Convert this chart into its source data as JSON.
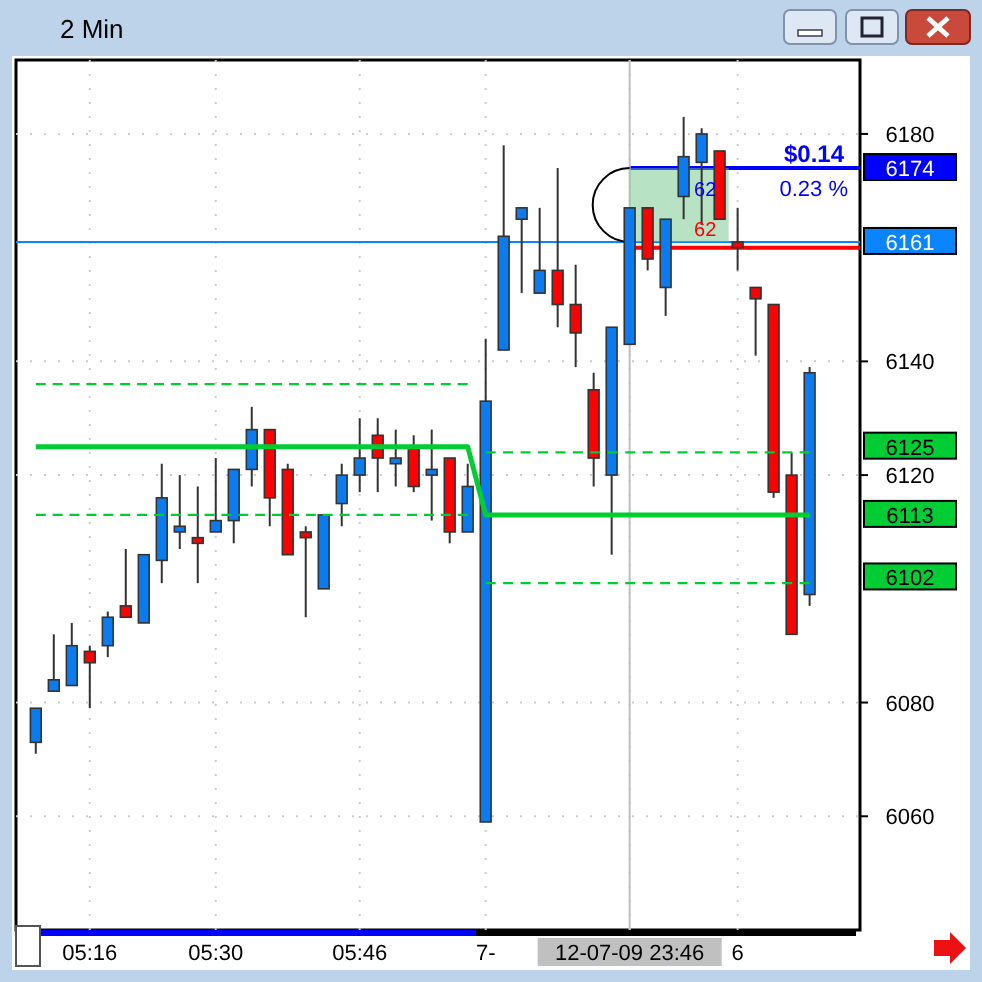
{
  "chart_data": {
    "type": "candlestick",
    "title": "2 Min",
    "categories": [
      null,
      null,
      null,
      "05:16",
      null,
      null,
      null,
      null,
      null,
      null,
      "05:30",
      null,
      null,
      null,
      null,
      null,
      null,
      null,
      "05:46",
      null,
      null,
      null,
      null,
      null,
      null,
      "7-",
      null,
      null,
      null,
      null,
      null,
      null,
      null,
      "12-07-09 23:46",
      null,
      null,
      null,
      null,
      null,
      "6",
      null,
      null,
      null,
      null
    ],
    "ohlc": [
      [
        6073,
        6079,
        6071,
        6079
      ],
      [
        6082,
        6092,
        6082,
        6084
      ],
      [
        6083,
        6094,
        6083,
        6090
      ],
      [
        6089,
        6090,
        6079,
        6087
      ],
      [
        6090,
        6096,
        6088,
        6095
      ],
      [
        6097,
        6107,
        6095,
        6095
      ],
      [
        6094,
        6106,
        6094,
        6106
      ],
      [
        6105,
        6122,
        6101,
        6116
      ],
      [
        6110,
        6120,
        6107,
        6111
      ],
      [
        6109,
        6118,
        6101,
        6108
      ],
      [
        6110,
        6123,
        6110,
        6112
      ],
      [
        6112,
        6121,
        6108,
        6121
      ],
      [
        6121,
        6132,
        6118,
        6128
      ],
      [
        6128,
        6128,
        6111,
        6116
      ],
      [
        6121,
        6122,
        6106,
        6106
      ],
      [
        6110,
        6111,
        6095,
        6109
      ],
      [
        6100,
        6113,
        6100,
        6113
      ],
      [
        6115,
        6122,
        6111,
        6120
      ],
      [
        6120,
        6130,
        6117,
        6123
      ],
      [
        6127,
        6130,
        6117,
        6123
      ],
      [
        6122,
        6128,
        6118,
        6123
      ],
      [
        6125,
        6127,
        6117,
        6118
      ],
      [
        6120,
        6128,
        6112,
        6121
      ],
      [
        6123,
        6123,
        6108,
        6110
      ],
      [
        6110,
        6122,
        6110,
        6118
      ],
      [
        6059,
        6144,
        6059,
        6133
      ],
      [
        6142,
        6178,
        6142,
        6162
      ],
      [
        6165,
        6167,
        6152,
        6167
      ],
      [
        6152,
        6167,
        6152,
        6156
      ],
      [
        6156,
        6174,
        6146,
        6150
      ],
      [
        6150,
        6157,
        6139,
        6145
      ],
      [
        6135,
        6138,
        6118,
        6123
      ],
      [
        6120,
        6146,
        6106,
        6146
      ],
      [
        6143,
        6167,
        6143,
        6167
      ],
      [
        6167,
        6167,
        6156,
        6158
      ],
      [
        6153,
        6165,
        6148,
        6165
      ],
      [
        6169,
        6183,
        6165,
        6176
      ],
      [
        6175,
        6181,
        6164,
        6180
      ],
      [
        6177,
        6177,
        6165,
        6165
      ],
      [
        6161,
        6167,
        6156,
        6160
      ],
      [
        6153,
        6153,
        6141,
        6151
      ],
      [
        6150,
        6150,
        6116,
        6117
      ],
      [
        6120,
        6124,
        6092,
        6092
      ],
      [
        6099,
        6139,
        6097,
        6138
      ]
    ],
    "colors": [
      "#0a7cf0",
      "#0a7cf0",
      "#0a7cf0",
      "#ff0000",
      "#0a7cf0",
      "#ff0000",
      "#0a7cf0",
      "#0a7cf0",
      "#0a7cf0",
      "#ff0000",
      "#0a7cf0",
      "#0a7cf0",
      "#0a7cf0",
      "#ff0000",
      "#ff0000",
      "#ff0000",
      "#0a7cf0",
      "#0a7cf0",
      "#0a7cf0",
      "#ff0000",
      "#0a7cf0",
      "#ff0000",
      "#0a7cf0",
      "#ff0000",
      "#0a7cf0",
      "#0a7cf0",
      "#0a7cf0",
      "#0a7cf0",
      "#0a7cf0",
      "#ff0000",
      "#ff0000",
      "#ff0000",
      "#0a7cf0",
      "#0a7cf0",
      "#ff0000",
      "#0a7cf0",
      "#0a7cf0",
      "#0a7cf0",
      "#ff0000",
      "#ff0000",
      "#ff0000",
      "#ff0000",
      "#ff0000",
      "#0a7cf0"
    ],
    "series": [
      {
        "type": "line",
        "color": "#00cc33",
        "line_style": "solid",
        "values": [
          6125,
          6125,
          6125,
          6125,
          6125,
          6125,
          6125,
          6125,
          6125,
          6125,
          6125,
          6125,
          6125,
          6125,
          6125,
          6125,
          6125,
          6125,
          6125,
          6125,
          6125,
          6125,
          6125,
          6125,
          6125,
          6113,
          6113,
          6113,
          6113,
          6113,
          6113,
          6113,
          6113,
          6113,
          6113,
          6113,
          6113,
          6113,
          6113,
          6113,
          6113,
          6113,
          6113,
          6113
        ]
      },
      {
        "type": "line",
        "color": "#00cc33",
        "line_style": "dashed",
        "values": [
          6136,
          6136,
          6136,
          6136,
          6136,
          6136,
          6136,
          6136,
          6136,
          6136,
          6136,
          6136,
          6136,
          6136,
          6136,
          6136,
          6136,
          6136,
          6136,
          6136,
          6136,
          6136,
          6136,
          6136,
          6136,
          null,
          null,
          null,
          null,
          null,
          null,
          null,
          null,
          null,
          null,
          null,
          null,
          null,
          null,
          null,
          null,
          null,
          null,
          null
        ]
      },
      {
        "type": "line",
        "color": "#00cc33",
        "line_style": "dashed",
        "values": [
          null,
          null,
          null,
          null,
          null,
          null,
          null,
          null,
          null,
          null,
          null,
          null,
          null,
          null,
          null,
          null,
          null,
          null,
          null,
          null,
          null,
          null,
          null,
          null,
          null,
          6124,
          6124,
          6124,
          6124,
          6124,
          6124,
          6124,
          6124,
          6124,
          6124,
          6124,
          6124,
          6124,
          6124,
          6124,
          6124,
          6124,
          6124,
          6124
        ]
      },
      {
        "type": "line",
        "color": "#00cc33",
        "line_style": "dashed",
        "values": [
          6113,
          6113,
          6113,
          6113,
          6113,
          6113,
          6113,
          6113,
          6113,
          6113,
          6113,
          6113,
          6113,
          6113,
          6113,
          6113,
          6113,
          6113,
          6113,
          6113,
          6113,
          6113,
          6113,
          6113,
          6113,
          null,
          null,
          null,
          null,
          null,
          null,
          null,
          null,
          null,
          null,
          null,
          null,
          null,
          null,
          null,
          null,
          null,
          null,
          null
        ]
      },
      {
        "type": "line",
        "color": "#00cc33",
        "line_style": "dashed",
        "values": [
          null,
          null,
          null,
          null,
          null,
          null,
          null,
          null,
          null,
          null,
          null,
          null,
          null,
          null,
          null,
          null,
          null,
          null,
          null,
          null,
          null,
          null,
          null,
          null,
          null,
          6101,
          6101,
          6101,
          6101,
          6101,
          6101,
          6101,
          6101,
          6101,
          6101,
          6101,
          6101,
          6101,
          6101,
          6101,
          6101,
          6101,
          6101,
          6101
        ]
      }
    ],
    "ylim": [
      6040,
      6193
    ],
    "yticks": [
      6060,
      6080,
      6120,
      6140,
      6180
    ],
    "grid": true,
    "ref_lines": [
      {
        "axis": "y",
        "value": 6161,
        "label": "6161",
        "color": "#0a84ff"
      },
      {
        "axis": "y",
        "value": 6174,
        "label": "6174",
        "color": "#0000ff"
      },
      {
        "axis": "y",
        "value": 6160,
        "color": "#ff0000"
      },
      {
        "axis": "x",
        "value": "12-07-09 23:46",
        "color": "#c0c0c0"
      }
    ],
    "annotations": [
      "6125",
      "6113",
      "6102",
      "$0.14",
      "0.23 %",
      "62",
      "62"
    ]
  }
}
